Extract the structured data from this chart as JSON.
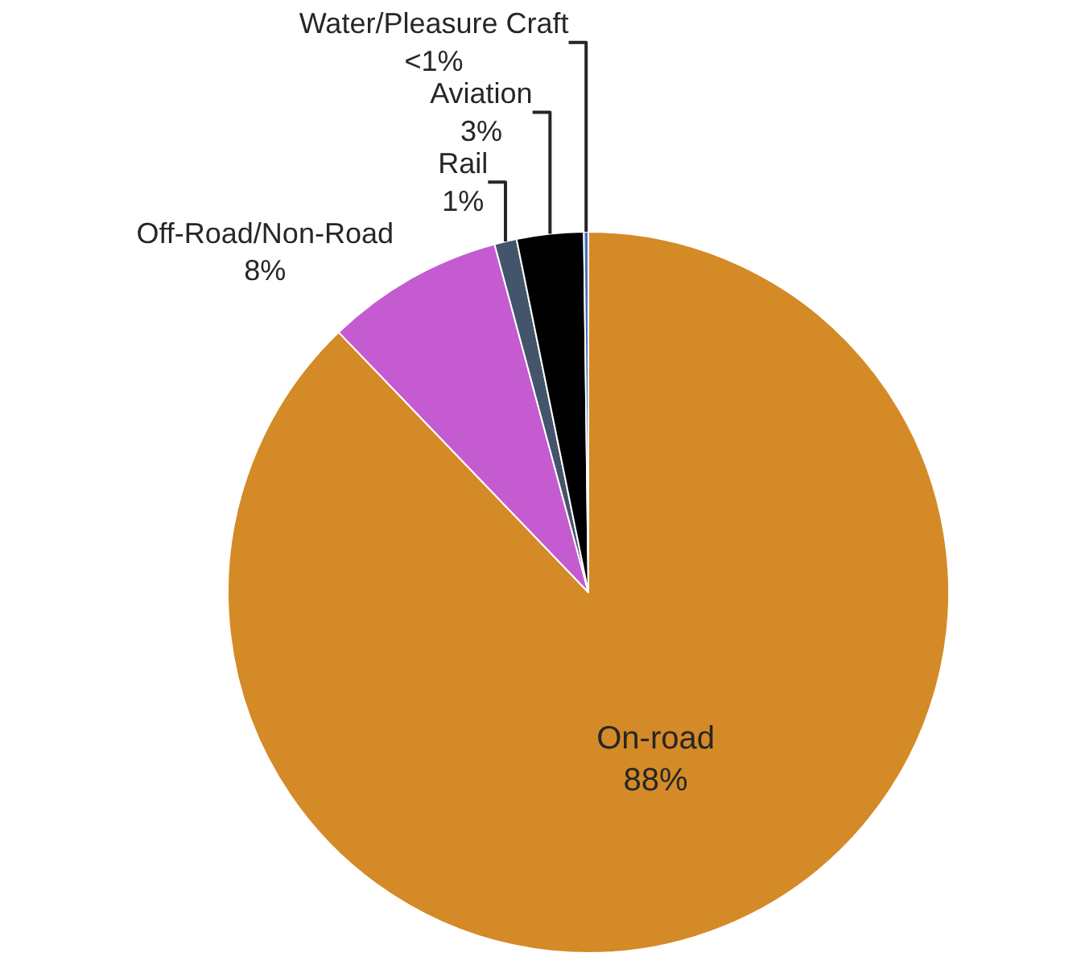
{
  "chart_data": {
    "type": "pie",
    "categories": [
      "On-road",
      "Off-Road/Non-Road",
      "Rail",
      "Aviation",
      "Water/Pleasure Craft"
    ],
    "values": [
      88,
      8,
      1,
      3,
      0.2
    ],
    "value_labels": [
      "88%",
      "8%",
      "1%",
      "3%",
      "<1%"
    ],
    "colors": [
      "#d48a26",
      "#c55bd1",
      "#44546a",
      "#000000",
      "#4472c4"
    ],
    "legend": false
  }
}
